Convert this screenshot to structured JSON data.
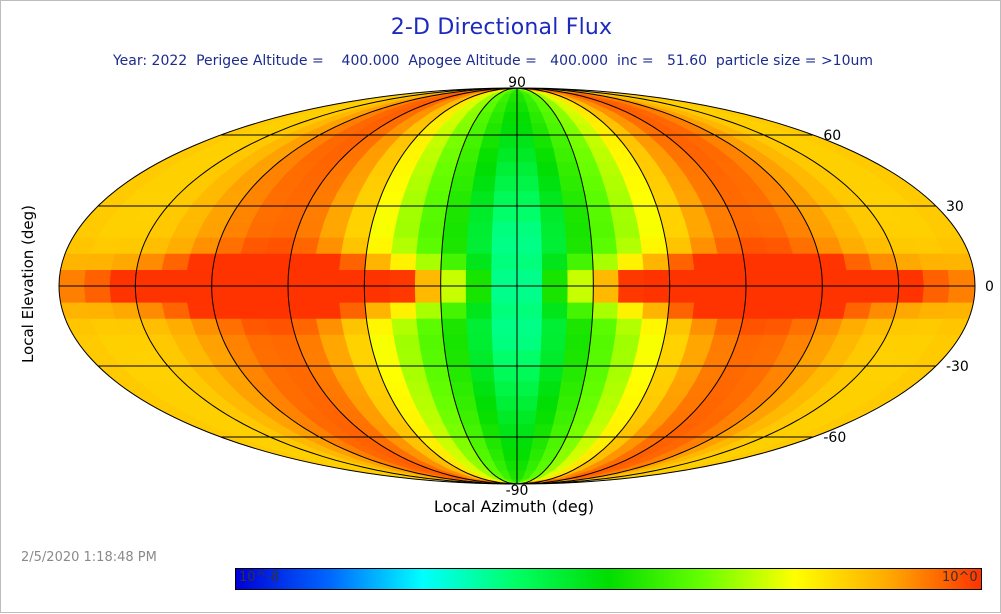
{
  "title": "2-D Directional Flux",
  "subtitle": "Year: 2022  Perigee Altitude =    400.000  Apogee Altitude =   400.000  inc =   51.60  particle size = >10um",
  "timestamp": "2/5/2020 1:18:48 PM",
  "chart_data": {
    "type": "heatmap",
    "projection": "mollweide",
    "title": "2-D Directional Flux",
    "xlabel": "Local Azimuth (deg)",
    "ylabel": "Local Elevation (deg)",
    "xlim": [
      -180,
      180
    ],
    "ylim": [
      -90,
      90
    ],
    "elevation_ticks": [
      "90",
      "60",
      "30",
      "0",
      "-30",
      "-60",
      "-90"
    ],
    "elevation_values": [
      90,
      60,
      30,
      0,
      -30,
      -60,
      -90
    ],
    "grid": true,
    "colorbar": {
      "min_label": "10^-8",
      "max_label": "10^0",
      "log_min": -8,
      "log_max": 0,
      "colors": [
        "#0000d8",
        "#0066ff",
        "#00ffff",
        "#00ff66",
        "#00dd00",
        "#66ff00",
        "#ffff00",
        "#ffaa00",
        "#ff3300"
      ]
    }
  }
}
